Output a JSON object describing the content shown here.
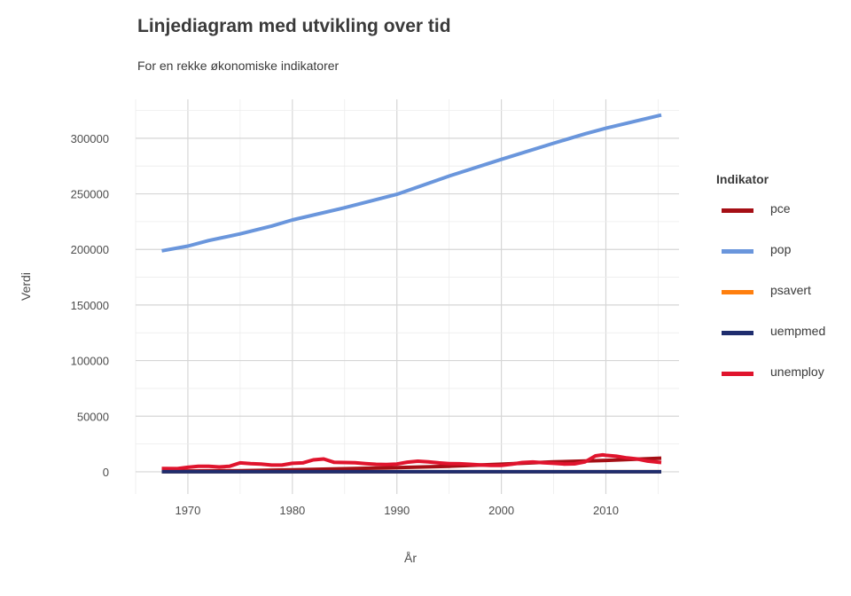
{
  "chart_data": {
    "type": "line",
    "title": "Linjediagram med utvikling over tid",
    "subtitle": "For en rekke økonomiske indikatorer",
    "xlabel": "År",
    "ylabel": "Verdi",
    "xlim": [
      1965,
      2017
    ],
    "ylim": [
      -20000,
      335000
    ],
    "x_ticks": [
      1970,
      1980,
      1990,
      2000,
      2010
    ],
    "y_ticks": [
      0,
      50000,
      100000,
      150000,
      200000,
      250000,
      300000
    ],
    "grid": true,
    "legend_title": "Indikator",
    "legend_position": "right",
    "series": [
      {
        "name": "pce",
        "color": "#a50f15",
        "x": [
          1967.5,
          1970,
          1975,
          1980,
          1985,
          1990,
          1995,
          2000,
          2005,
          2010,
          2015.3
        ],
        "y": [
          507,
          640,
          980,
          1750,
          2700,
          3800,
          5000,
          6800,
          8900,
          10200,
          12200
        ]
      },
      {
        "name": "pop",
        "color": "#6a96dc",
        "x": [
          1967.5,
          1970,
          1972,
          1975,
          1978,
          1980,
          1985,
          1990,
          1995,
          2000,
          2005,
          2008,
          2010,
          2015.3
        ],
        "y": [
          198712,
          203000,
          208000,
          214000,
          221000,
          226500,
          237500,
          249600,
          266000,
          281000,
          295500,
          304000,
          309000,
          320900
        ]
      },
      {
        "name": "psavert",
        "color": "#ff7f0e",
        "x": [
          1967.5,
          1975,
          1985,
          1995,
          2005,
          2015.3
        ],
        "y": [
          12,
          13,
          10,
          6,
          3,
          7
        ]
      },
      {
        "name": "uempmed",
        "color": "#1f2d6e",
        "x": [
          1967.5,
          1980,
          1990,
          2000,
          2010,
          2015.3
        ],
        "y": [
          5,
          7,
          6,
          6,
          20,
          12
        ]
      },
      {
        "name": "unemploy",
        "color": "#e0142d",
        "x": [
          1967.5,
          1969,
          1970,
          1971,
          1972,
          1973,
          1974,
          1975,
          1976,
          1977,
          1978,
          1979,
          1980,
          1981,
          1982,
          1983,
          1984,
          1985,
          1986,
          1987,
          1988,
          1989,
          1990,
          1991,
          1992,
          1993,
          1994,
          1995,
          1996,
          1997,
          1998,
          1999,
          2000,
          2001,
          2002,
          2003,
          2004,
          2005,
          2006,
          2007,
          2008,
          2009,
          2009.7,
          2010,
          2011,
          2012,
          2013,
          2014,
          2015.3
        ],
        "y": [
          2944,
          2800,
          4000,
          5000,
          5000,
          4300,
          5000,
          8000,
          7300,
          7000,
          6000,
          6000,
          7600,
          8000,
          10700,
          11500,
          8500,
          8300,
          8200,
          7400,
          6700,
          6500,
          7000,
          8600,
          9500,
          8900,
          8000,
          7400,
          7200,
          6700,
          6200,
          5800,
          5700,
          6800,
          8300,
          8800,
          8100,
          7600,
          7000,
          7100,
          8900,
          14300,
          15200,
          14800,
          14000,
          12500,
          11500,
          9600,
          8300
        ]
      }
    ]
  }
}
